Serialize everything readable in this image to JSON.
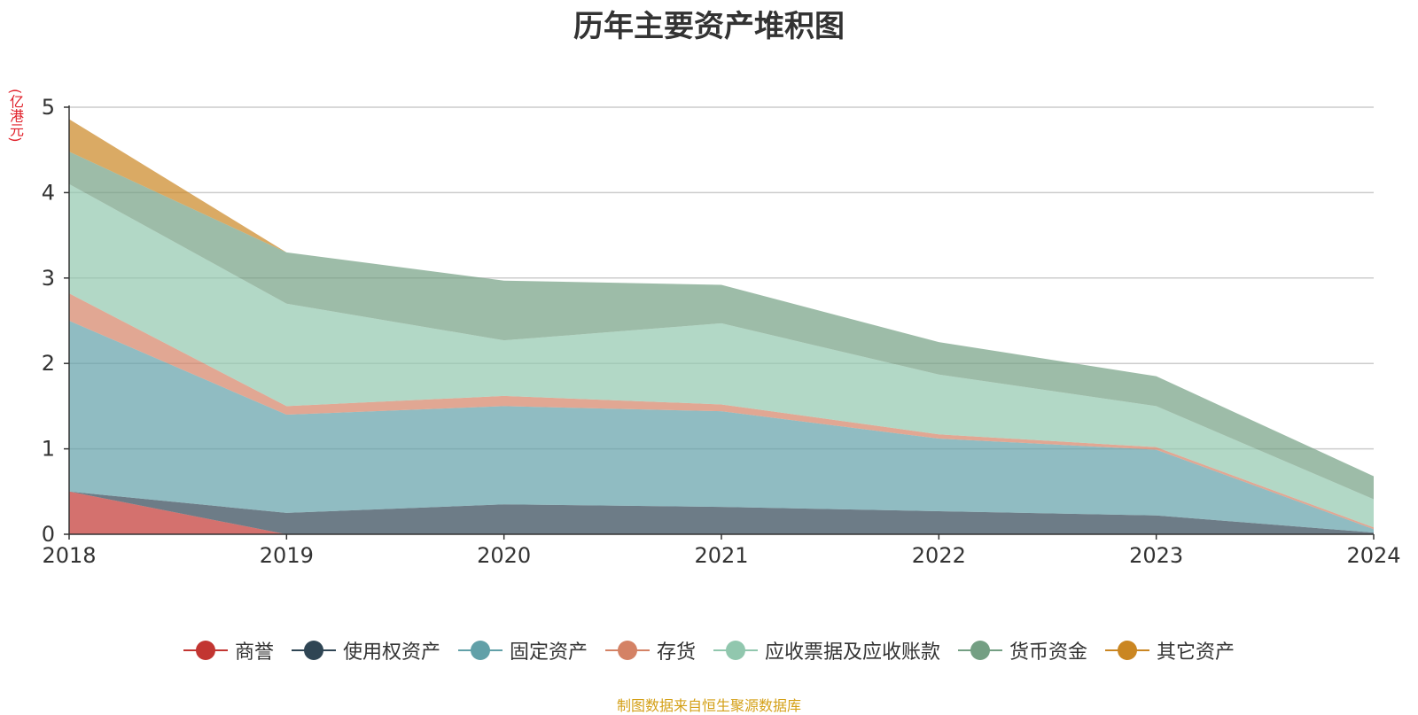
{
  "chart_data": {
    "type": "area",
    "title": "历年主要资产堆积图",
    "unit_label": "(亿港元)",
    "categories": [
      "2018",
      "2019",
      "2020",
      "2021",
      "2022",
      "2023",
      "2024"
    ],
    "ylim": [
      0,
      5
    ],
    "yticks": [
      "0",
      "1",
      "2",
      "3",
      "4",
      "5"
    ],
    "stacked": true,
    "grid": true,
    "legend_position": "bottom",
    "series": [
      {
        "name": "商誉",
        "color": "#c23531",
        "values": [
          0.5,
          0.0,
          0.0,
          0.0,
          0.0,
          0.0,
          0.0
        ]
      },
      {
        "name": "使用权资产",
        "color": "#2f4554",
        "values": [
          0.0,
          0.25,
          0.35,
          0.32,
          0.27,
          0.22,
          0.02
        ]
      },
      {
        "name": "固定资产",
        "color": "#61a0a8",
        "values": [
          2.0,
          1.15,
          1.15,
          1.12,
          0.85,
          0.77,
          0.04
        ]
      },
      {
        "name": "存货",
        "color": "#d48265",
        "values": [
          0.32,
          0.1,
          0.12,
          0.08,
          0.05,
          0.03,
          0.02
        ]
      },
      {
        "name": "应收票据及应收账款",
        "color": "#91c7ae",
        "values": [
          1.28,
          1.2,
          0.65,
          0.95,
          0.7,
          0.48,
          0.33
        ]
      },
      {
        "name": "货币资金",
        "color": "#749f83",
        "values": [
          0.38,
          0.6,
          0.7,
          0.45,
          0.38,
          0.35,
          0.27
        ]
      },
      {
        "name": "其它资产",
        "color": "#ca8622",
        "values": [
          0.38,
          0.0,
          0.0,
          0.0,
          0.0,
          0.0,
          0.0
        ]
      }
    ]
  },
  "source": {
    "text": "制图数据来自恒生聚源数据库",
    "color": "#d4a017"
  }
}
